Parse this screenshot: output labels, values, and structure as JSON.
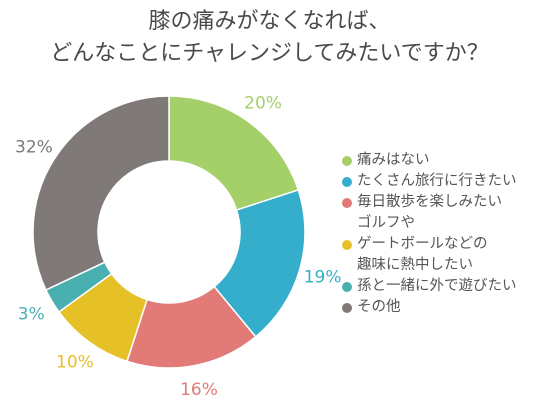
{
  "chart_data": {
    "type": "pie",
    "style": "donut",
    "title_lines": [
      "膝の痛みがなくなれば、",
      "どんなことにチャレンジしてみたいですか？"
    ],
    "legend_position": "right",
    "slices": [
      {
        "label": "痛みはない",
        "value": 20,
        "value_label": "20%",
        "color": "#a4cf69"
      },
      {
        "label": "たくさん旅行に行きたい",
        "value": 19,
        "value_label": "19%",
        "color": "#35aecb"
      },
      {
        "label": "毎日散歩を楽しみたい\nゴルフや",
        "value": 16,
        "value_label": "16%",
        "color": "#e27a78"
      },
      {
        "label": "ゲートボールなどの\n趣味に熱中したい",
        "value": 10,
        "value_label": "10%",
        "color": "#e6c027"
      },
      {
        "label": "孫と一緒に外で遊びたい",
        "value": 3,
        "value_label": "3%",
        "color": "#4aafb0"
      },
      {
        "label": "その他",
        "value": 32,
        "value_label": "32%",
        "color": "#7f7978"
      }
    ]
  }
}
